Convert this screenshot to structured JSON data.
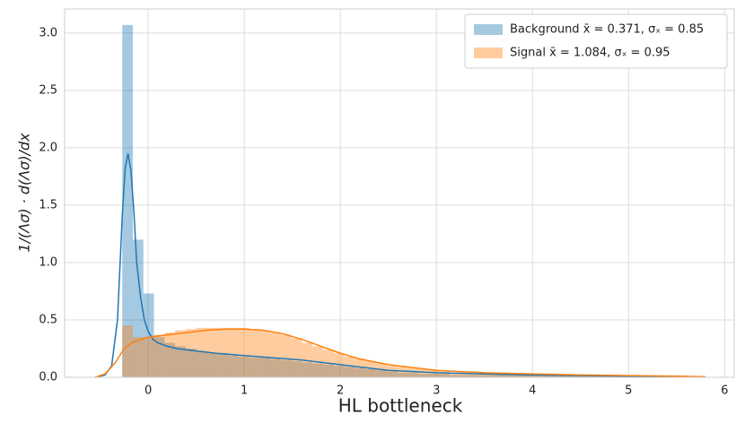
{
  "chart_data": {
    "type": "histogram",
    "x_label": "HL bottleneck",
    "y_label": "1/(Λσ) · d(Λσ)/dx",
    "xlim": [
      -0.87,
      6.1
    ],
    "ylim": [
      0,
      3.21
    ],
    "xticks": [
      0,
      1,
      2,
      3,
      4,
      5,
      6
    ],
    "yticks": [
      {
        "value": 0,
        "label": "0.0"
      },
      0.5,
      {
        "value": 1,
        "label": "1.0"
      },
      1.5,
      {
        "value": 2,
        "label": "2.0"
      },
      2.5,
      {
        "value": 3,
        "label": "3.0"
      }
    ],
    "grid": true,
    "legend": "upper right",
    "bins": [
      -0.27,
      -0.16,
      -0.05,
      0.06,
      0.17,
      0.28,
      0.39,
      0.5,
      0.61,
      0.72,
      0.83,
      0.94,
      1.05,
      1.16,
      1.27,
      1.38,
      1.49,
      1.6,
      1.71,
      1.82,
      1.93,
      2.04,
      2.15,
      2.26,
      2.37,
      2.48,
      2.59,
      2.7,
      2.81,
      2.92,
      3.03,
      3.14,
      3.25,
      3.36,
      3.47,
      3.58,
      3.69,
      3.8,
      3.91,
      4.02,
      4.13,
      4.24,
      4.35,
      4.46,
      4.57,
      4.68,
      4.79,
      4.9,
      5.01,
      5.12,
      5.23
    ],
    "series": [
      {
        "name": "Background x̄ = 0.371, σₓ = 0.85",
        "color": "#1f77b4",
        "values": [
          3.07,
          1.2,
          0.73,
          0.35,
          0.3,
          0.27,
          0.25,
          0.23,
          0.21,
          0.2,
          0.19,
          0.18,
          0.17,
          0.17,
          0.16,
          0.15,
          0.14,
          0.13,
          0.12,
          0.11,
          0.1,
          0.09,
          0.08,
          0.07,
          0.06,
          0.05,
          0.04,
          0.04,
          0.03,
          0.03,
          0.03,
          0.02,
          0.02,
          0.02,
          0.02,
          0.02,
          0.02,
          0.02,
          0.02,
          0.02,
          0.015,
          0.015,
          0.01,
          0.01,
          0.01,
          0.01,
          0.01,
          0.01,
          0.005,
          0.005
        ],
        "kde_x": [
          -0.55,
          -0.45,
          -0.38,
          -0.32,
          -0.27,
          -0.24,
          -0.21,
          -0.18,
          -0.15,
          -0.12,
          -0.08,
          -0.04,
          0,
          0.05,
          0.1,
          0.2,
          0.3,
          0.5,
          0.7,
          1.0,
          1.3,
          1.6,
          1.9,
          2.2,
          2.5,
          3,
          3.5,
          4,
          4.5,
          5,
          5.5,
          5.8
        ],
        "kde_values": [
          0,
          0.02,
          0.1,
          0.5,
          1.4,
          1.82,
          1.95,
          1.8,
          1.45,
          1.0,
          0.7,
          0.5,
          0.4,
          0.33,
          0.3,
          0.27,
          0.25,
          0.23,
          0.21,
          0.19,
          0.17,
          0.15,
          0.12,
          0.09,
          0.06,
          0.04,
          0.03,
          0.02,
          0.015,
          0.01,
          0.005,
          0.002
        ]
      },
      {
        "name": "Signal x̄ = 1.084, σₓ = 0.95",
        "color": "#ff7f0e",
        "values": [
          0.45,
          0.35,
          0.35,
          0.37,
          0.39,
          0.41,
          0.42,
          0.43,
          0.43,
          0.43,
          0.43,
          0.43,
          0.42,
          0.41,
          0.39,
          0.37,
          0.34,
          0.3,
          0.27,
          0.24,
          0.21,
          0.18,
          0.16,
          0.14,
          0.12,
          0.1,
          0.09,
          0.08,
          0.07,
          0.06,
          0.05,
          0.04,
          0.04,
          0.03,
          0.03,
          0.03,
          0.03,
          0.03,
          0.03,
          0.02,
          0.02,
          0.02,
          0.02,
          0.02,
          0.02,
          0.02,
          0.02,
          0.015,
          0.015,
          0.01
        ],
        "kde_x": [
          -0.55,
          -0.45,
          -0.35,
          -0.25,
          -0.15,
          0,
          0.2,
          0.4,
          0.6,
          0.8,
          1.0,
          1.2,
          1.4,
          1.6,
          1.8,
          2.0,
          2.2,
          2.5,
          3,
          3.5,
          4,
          4.5,
          5,
          5.5,
          5.8
        ],
        "kde_values": [
          0,
          0.03,
          0.12,
          0.25,
          0.31,
          0.35,
          0.37,
          0.39,
          0.41,
          0.42,
          0.42,
          0.41,
          0.38,
          0.33,
          0.27,
          0.21,
          0.16,
          0.11,
          0.06,
          0.04,
          0.03,
          0.02,
          0.015,
          0.01,
          0.005
        ]
      }
    ]
  }
}
